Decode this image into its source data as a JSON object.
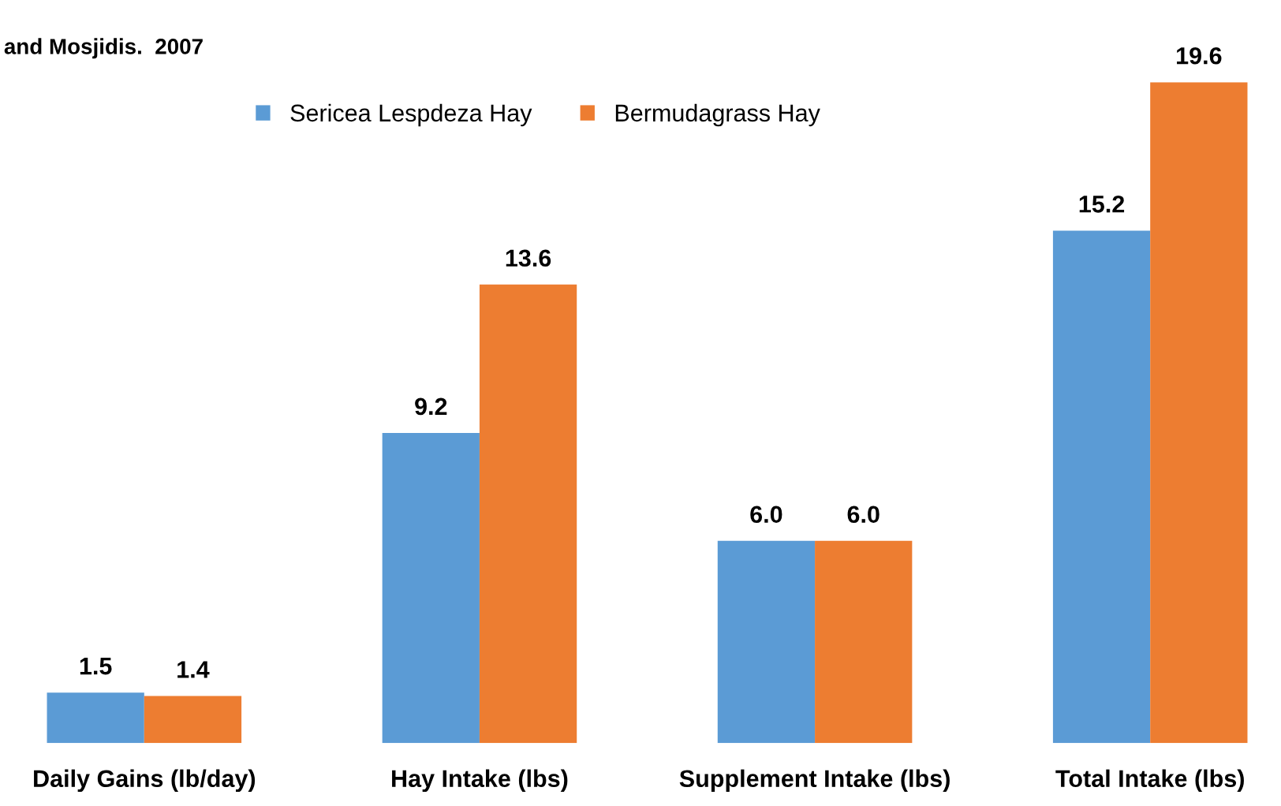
{
  "chart_data": {
    "type": "bar",
    "categories": [
      "Daily Gains (lb/day)",
      "Hay Intake (lbs)",
      "Supplement Intake (lbs)",
      "Total Intake (lbs)"
    ],
    "series": [
      {
        "name": "Sericea Lespdeza Hay",
        "color": "#5b9bd5",
        "values": [
          1.5,
          9.2,
          6.0,
          15.2
        ],
        "value_labels": [
          "1.5",
          "9.2",
          "6.0",
          "15.2"
        ]
      },
      {
        "name": "Bermudagrass Hay",
        "color": "#ed7d31",
        "values": [
          1.4,
          13.6,
          6.0,
          19.6
        ],
        "value_labels": [
          "1.4",
          "13.6",
          "6.0",
          "19.6"
        ]
      }
    ],
    "legend": "top",
    "grid": false,
    "annotations": [
      "and Mosjidis.  2007"
    ]
  }
}
